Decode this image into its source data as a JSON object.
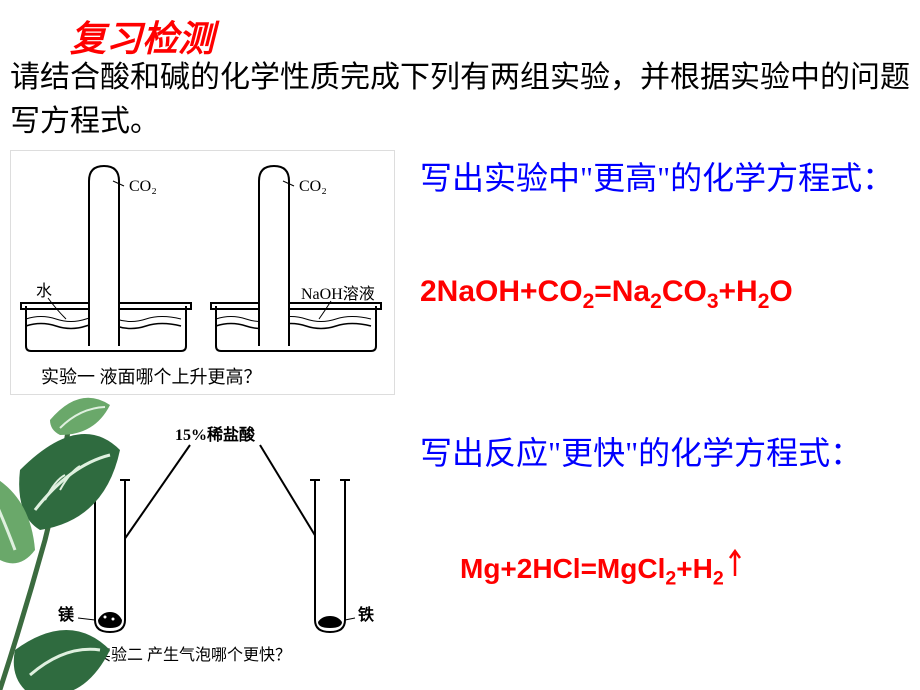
{
  "title": "复习检测",
  "instructions": "请结合酸和碱的化学性质完成下列有两组实验，并根据实验中的问题写方程式。",
  "experiment1": {
    "prompt": "写出实验中\"更高\"的化学方程式：",
    "equation_html": "2NaOH+CO<sub>2</sub>=Na<sub>2</sub>CO<sub>3</sub>+H<sub>2</sub>O",
    "diagram": {
      "gas_label": "CO₂",
      "liquid_left": "水",
      "liquid_right": "NaOH溶液",
      "caption": "实验一  液面哪个上升更高？",
      "stroke": "#000000"
    }
  },
  "experiment2": {
    "prompt": "写出反应\"更快\"的化学方程式：",
    "equation_html": "Mg+2HCl=MgCl<sub>2</sub>+H<sub>2</sub>",
    "diagram": {
      "acid_label": "15%稀盐酸",
      "metal_left": "镁",
      "metal_right": "铁",
      "caption": "实验二  产生气泡哪个更快？",
      "stroke": "#000000"
    }
  },
  "colors": {
    "title": "#ff0000",
    "prompt": "#0000ff",
    "equation": "#ff0000",
    "body_text": "#000000",
    "leaf_dark": "#2f6b3f",
    "leaf_light": "#6aa86a",
    "leaf_vein": "#dff0df"
  },
  "typography": {
    "title_fontsize": 36,
    "body_fontsize": 30,
    "prompt_fontsize": 32,
    "equation_fontsize": 30
  }
}
